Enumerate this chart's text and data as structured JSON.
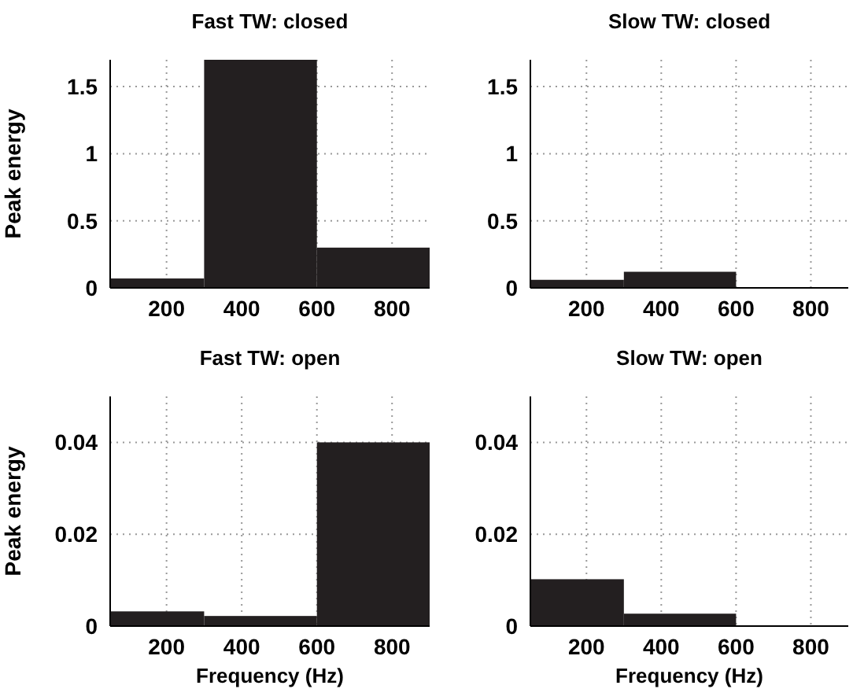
{
  "chart_data": [
    {
      "type": "histogram",
      "title": "Fast TW: closed",
      "ylabel": "Peak energy",
      "bins": [
        50,
        300,
        600,
        900
      ],
      "values": [
        0.07,
        1.7,
        0.3
      ],
      "color": "#231f20",
      "xlim": [
        50,
        900
      ],
      "xticks": [
        200,
        400,
        600,
        800
      ],
      "ylim": [
        0,
        1.7
      ],
      "yticks": [
        0,
        0.5,
        1,
        1.5
      ],
      "grid": true
    },
    {
      "type": "histogram",
      "title": "Slow TW: closed",
      "bins": [
        50,
        300,
        600
      ],
      "values": [
        0.06,
        0.12
      ],
      "color": "#231f20",
      "xlim": [
        50,
        900
      ],
      "xticks": [
        200,
        400,
        600,
        800
      ],
      "ylim": [
        0,
        1.7
      ],
      "yticks": [
        0,
        0.5,
        1,
        1.5
      ],
      "grid": true
    },
    {
      "type": "histogram",
      "title": "Fast TW: open",
      "ylabel": "Peak energy",
      "xlabel": "Frequency (Hz)",
      "bins": [
        50,
        300,
        600,
        900
      ],
      "values": [
        0.0032,
        0.0022,
        0.04
      ],
      "color": "#231f20",
      "xlim": [
        50,
        900
      ],
      "xticks": [
        200,
        400,
        600,
        800
      ],
      "ylim": [
        0,
        0.05
      ],
      "yticks": [
        0,
        0.02,
        0.04
      ],
      "grid": true
    },
    {
      "type": "histogram",
      "title": "Slow TW: open",
      "xlabel": "Frequency (Hz)",
      "bins": [
        50,
        300,
        600
      ],
      "values": [
        0.0102,
        0.0027
      ],
      "color": "#231f20",
      "xlim": [
        50,
        900
      ],
      "xticks": [
        200,
        400,
        600,
        800
      ],
      "ylim": [
        0,
        0.05
      ],
      "yticks": [
        0,
        0.02,
        0.04
      ],
      "grid": true
    }
  ]
}
